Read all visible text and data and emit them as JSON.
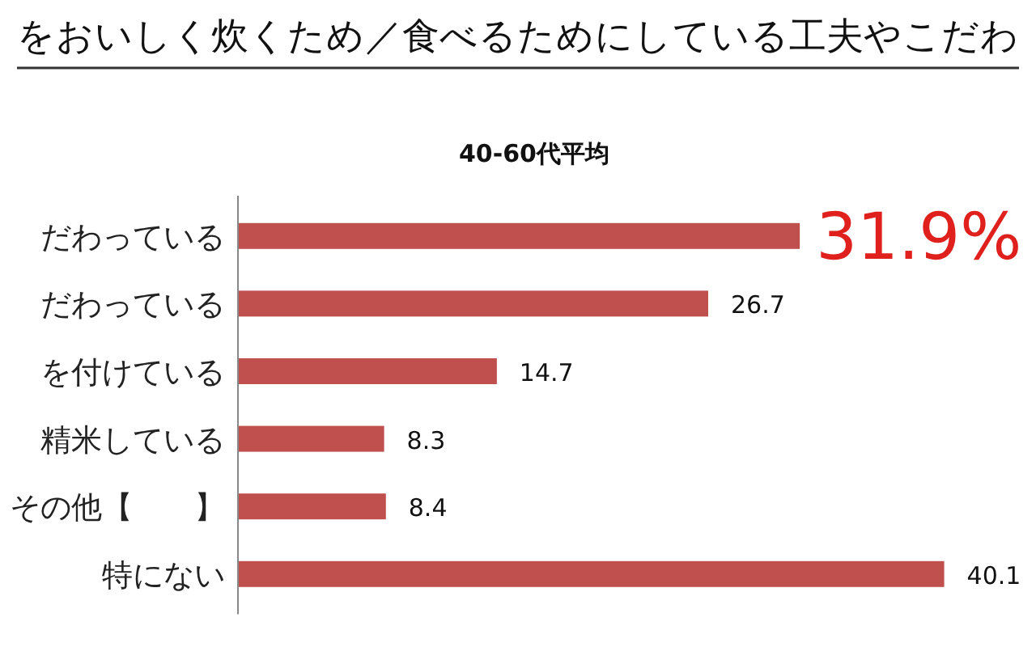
{
  "chart_data": {
    "type": "bar",
    "orientation": "horizontal",
    "title": "をおいしく炊くため／食べるためにしている工夫やこだわ",
    "subtitle": "40-60代平均",
    "categories": [
      "だわっている",
      "だわっている",
      "を付けている",
      "精米している",
      "その他【　　】",
      "特にない"
    ],
    "values": [
      31.9,
      26.7,
      14.7,
      8.3,
      8.4,
      40.1
    ],
    "value_labels": [
      "31.9%",
      "26.7",
      "14.7",
      "8.3",
      "8.4",
      "40.1"
    ],
    "color": "#c0504d"
  }
}
